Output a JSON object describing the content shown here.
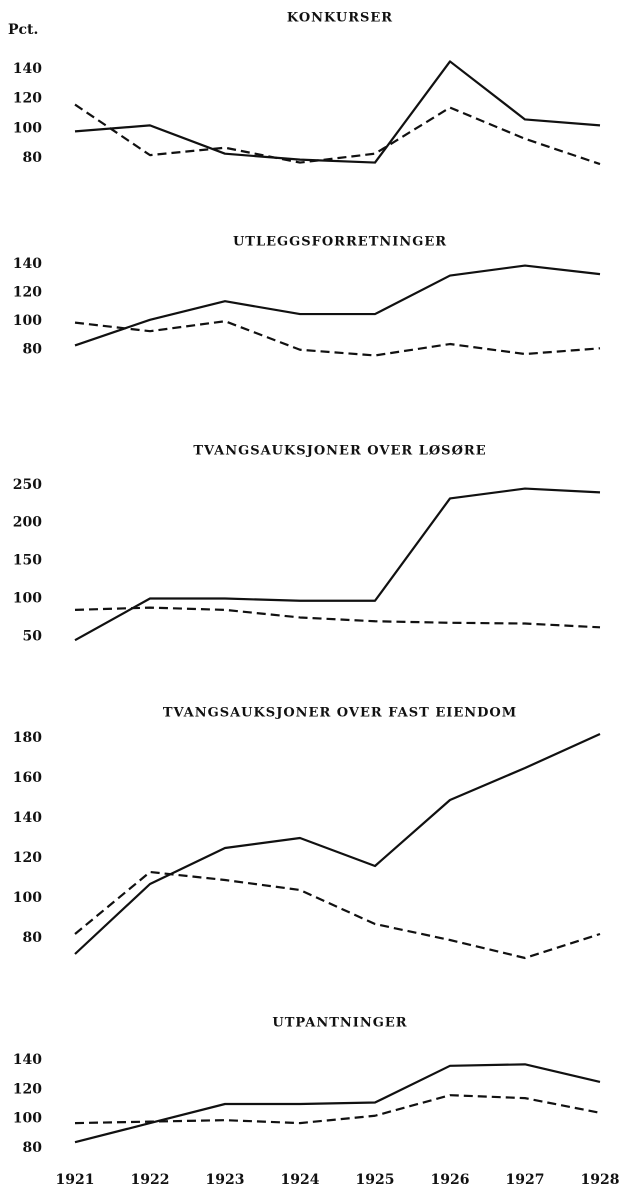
{
  "chart_data": [
    {
      "type": "line",
      "title": "KONKURSER",
      "ylabel": "Pct.",
      "x": [
        1921,
        1922,
        1923,
        1924,
        1925,
        1926,
        1927,
        1928
      ],
      "ylim": [
        70,
        150
      ],
      "yticks": [
        80,
        100,
        120,
        140
      ],
      "series": [
        {
          "color": "#111111",
          "linestyle": "solid",
          "values": [
            98,
            102,
            83,
            79,
            77,
            145,
            106,
            102
          ]
        },
        {
          "color": "#111111",
          "linestyle": "dashed",
          "values": [
            116,
            82,
            87,
            77,
            83,
            114,
            93,
            76
          ]
        }
      ]
    },
    {
      "type": "line",
      "title": "UTLEGGSFORRETNINGER",
      "x": [
        1921,
        1922,
        1923,
        1924,
        1925,
        1926,
        1927,
        1928
      ],
      "ylim": [
        70,
        145
      ],
      "yticks": [
        80,
        100,
        120,
        140
      ],
      "series": [
        {
          "color": "#111111",
          "linestyle": "solid",
          "values": [
            83,
            101,
            114,
            105,
            105,
            132,
            139,
            133
          ]
        },
        {
          "color": "#111111",
          "linestyle": "dashed",
          "values": [
            99,
            93,
            100,
            80,
            76,
            84,
            77,
            81
          ]
        }
      ]
    },
    {
      "type": "line",
      "title": "TVANGSAUKSJONER OVER LØSØRE",
      "x": [
        1921,
        1922,
        1923,
        1924,
        1925,
        1926,
        1927,
        1928
      ],
      "ylim": [
        40,
        255
      ],
      "yticks": [
        50,
        100,
        150,
        200,
        250
      ],
      "series": [
        {
          "color": "#111111",
          "linestyle": "solid",
          "values": [
            45,
            100,
            100,
            97,
            97,
            232,
            245,
            240
          ]
        },
        {
          "color": "#111111",
          "linestyle": "dashed",
          "values": [
            85,
            88,
            85,
            75,
            70,
            68,
            67,
            62
          ]
        }
      ]
    },
    {
      "type": "line",
      "title": "TVANGSAUKSJONER OVER FAST EIENDOM",
      "x": [
        1921,
        1922,
        1923,
        1924,
        1925,
        1926,
        1927,
        1928
      ],
      "ylim": [
        65,
        185
      ],
      "yticks": [
        80,
        100,
        120,
        140,
        160,
        180
      ],
      "series": [
        {
          "color": "#111111",
          "linestyle": "solid",
          "values": [
            72,
            107,
            125,
            130,
            116,
            149,
            165,
            182
          ]
        },
        {
          "color": "#111111",
          "linestyle": "dashed",
          "values": [
            82,
            113,
            109,
            104,
            87,
            79,
            70,
            82
          ]
        }
      ]
    },
    {
      "type": "line",
      "title": "UTPANTNINGER",
      "x": [
        1921,
        1922,
        1923,
        1924,
        1925,
        1926,
        1927,
        1928
      ],
      "xticks": [
        1921,
        1922,
        1923,
        1924,
        1925,
        1926,
        1927,
        1928
      ],
      "ylim": [
        78,
        142
      ],
      "yticks": [
        80,
        100,
        120,
        140
      ],
      "series": [
        {
          "color": "#111111",
          "linestyle": "solid",
          "values": [
            84,
            97,
            110,
            110,
            111,
            136,
            137,
            125
          ]
        },
        {
          "color": "#111111",
          "linestyle": "dashed",
          "values": [
            97,
            98,
            99,
            97,
            102,
            116,
            114,
            104
          ]
        }
      ]
    }
  ]
}
